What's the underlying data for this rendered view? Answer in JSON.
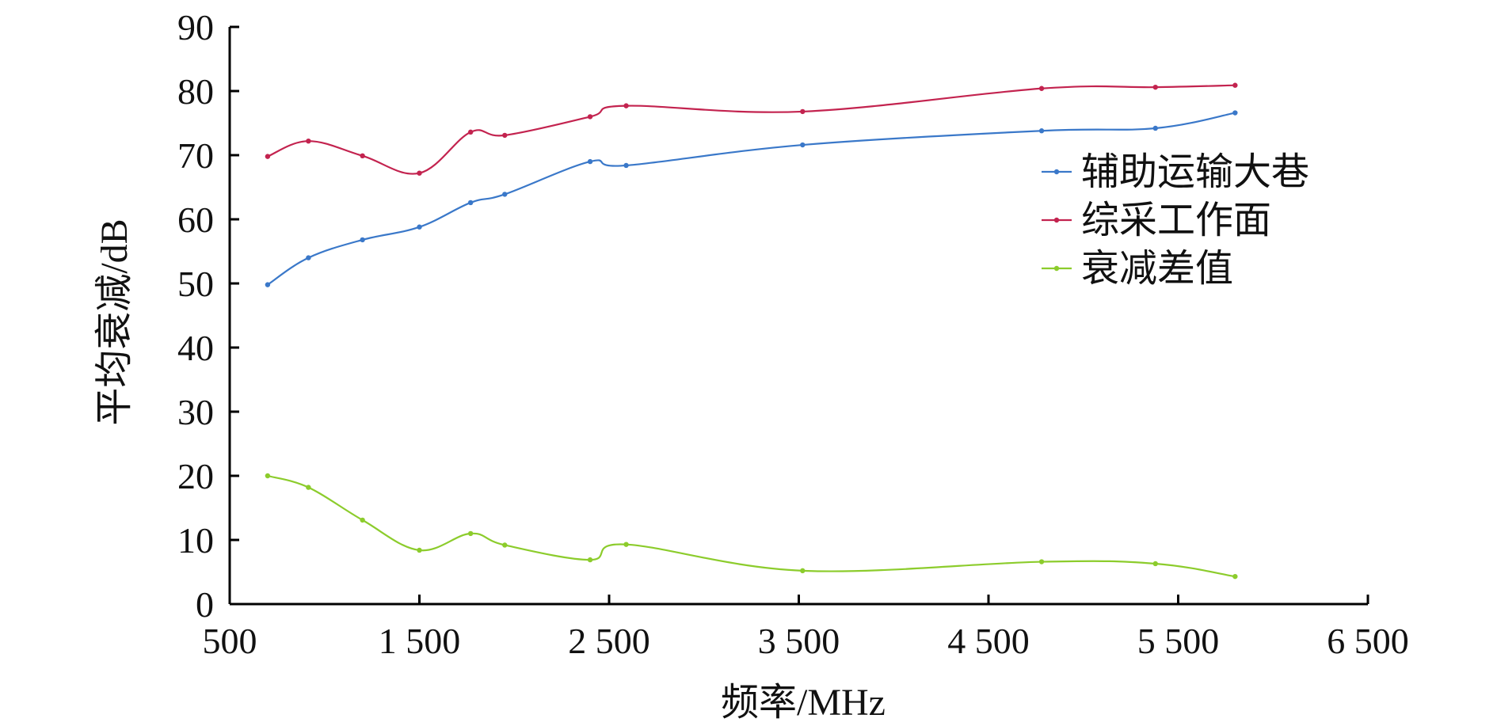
{
  "chart_data": {
    "type": "line",
    "title": "",
    "xlabel": "频率/MHz",
    "ylabel": "平均衰减/dB",
    "xlim": [
      500,
      6500
    ],
    "ylim": [
      0,
      90
    ],
    "x_ticks": [
      500,
      1500,
      2500,
      3500,
      4500,
      5500,
      6500
    ],
    "x_tick_labels": [
      "500",
      "1 500",
      "2 500",
      "3 500",
      "4 500",
      "5 500",
      "6 500"
    ],
    "y_ticks": [
      0,
      10,
      20,
      30,
      40,
      50,
      60,
      70,
      80,
      90
    ],
    "y_tick_labels": [
      "0",
      "10",
      "20",
      "30",
      "40",
      "50",
      "60",
      "70",
      "80",
      "90"
    ],
    "grid": false,
    "legend_position": "right",
    "series": [
      {
        "name": "辅助运输大巷",
        "color": "#3a78c9",
        "points": [
          [
            700,
            49.8
          ],
          [
            915,
            54.0
          ],
          [
            1200,
            56.8
          ],
          [
            1500,
            58.8
          ],
          [
            1770,
            62.6
          ],
          [
            1950,
            63.9
          ],
          [
            2400,
            69.0
          ],
          [
            2590,
            68.4
          ],
          [
            3520,
            71.6
          ],
          [
            4780,
            73.8
          ],
          [
            5380,
            74.2
          ],
          [
            5800,
            76.6
          ]
        ]
      },
      {
        "name": "综采工作面",
        "color": "#c3234f",
        "points": [
          [
            700,
            69.8
          ],
          [
            915,
            72.2
          ],
          [
            1200,
            69.9
          ],
          [
            1500,
            67.2
          ],
          [
            1770,
            73.6
          ],
          [
            1950,
            73.1
          ],
          [
            2400,
            76.0
          ],
          [
            2590,
            77.7
          ],
          [
            3520,
            76.8
          ],
          [
            4780,
            80.4
          ],
          [
            5380,
            80.6
          ],
          [
            5800,
            80.9
          ]
        ]
      },
      {
        "name": "衰减差值",
        "color": "#8ccc2c",
        "points": [
          [
            700,
            20.0
          ],
          [
            915,
            18.2
          ],
          [
            1200,
            13.1
          ],
          [
            1500,
            8.4
          ],
          [
            1770,
            11.0
          ],
          [
            1950,
            9.2
          ],
          [
            2400,
            6.9
          ],
          [
            2590,
            9.3
          ],
          [
            3520,
            5.2
          ],
          [
            4780,
            6.6
          ],
          [
            5380,
            6.3
          ],
          [
            5800,
            4.3
          ]
        ]
      }
    ]
  }
}
